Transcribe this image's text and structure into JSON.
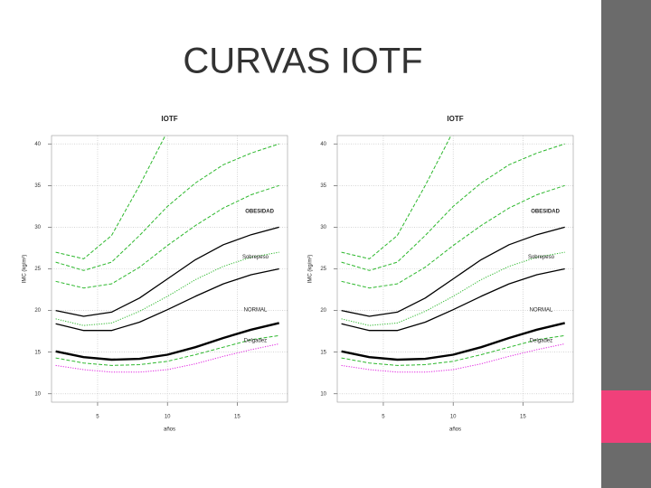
{
  "title": "CURVAS IOTF",
  "chart_data": [
    {
      "type": "line",
      "title": "IOTF",
      "xlabel": "años",
      "ylabel": "IMC (kg/m²)",
      "x": [
        2,
        4,
        6,
        8,
        10,
        12,
        14,
        16,
        18
      ],
      "xlim": [
        1.7,
        18.6
      ],
      "xticks": [
        5,
        10,
        15
      ],
      "ylim": [
        9,
        41
      ],
      "yticks": [
        10,
        15,
        20,
        25,
        30,
        35,
        40
      ],
      "grid": true,
      "annotations": [
        "OBESIDAD",
        "Sobrepeso",
        "NORMAL",
        "Delgadez"
      ],
      "series": [
        {
          "color": "#2db82d",
          "style": "dashed",
          "values": [
            27,
            26.2,
            29,
            35,
            41.5,
            null,
            null,
            null,
            null
          ]
        },
        {
          "color": "#2db82d",
          "style": "dashed",
          "values": [
            25.8,
            24.8,
            25.8,
            29,
            32.5,
            35.3,
            37.5,
            38.9,
            40
          ]
        },
        {
          "color": "#2db82d",
          "style": "dashed",
          "values": [
            23.5,
            22.7,
            23.2,
            25.2,
            27.8,
            30.2,
            32.3,
            33.9,
            35
          ]
        },
        {
          "color": "#000000",
          "style": "solid",
          "values": [
            20,
            19.3,
            19.8,
            21.5,
            23.8,
            26.1,
            27.9,
            29.1,
            30
          ]
        },
        {
          "color": "#2db82d",
          "style": "dotted",
          "values": [
            19,
            18.2,
            18.5,
            19.9,
            21.7,
            23.7,
            25.3,
            26.4,
            27
          ]
        },
        {
          "color": "#000000",
          "style": "solid",
          "values": [
            18.4,
            17.6,
            17.6,
            18.6,
            20.1,
            21.7,
            23.2,
            24.3,
            25
          ]
        },
        {
          "color": "#000000",
          "style": "thick",
          "values": [
            15.1,
            14.4,
            14.1,
            14.2,
            14.7,
            15.6,
            16.7,
            17.7,
            18.5
          ]
        },
        {
          "color": "#2db82d",
          "style": "dashed",
          "values": [
            14.3,
            13.7,
            13.4,
            13.5,
            13.9,
            14.7,
            15.6,
            16.5,
            17
          ]
        },
        {
          "color": "#e020e0",
          "style": "dotted",
          "values": [
            13.4,
            12.9,
            12.6,
            12.6,
            12.9,
            13.6,
            14.5,
            15.3,
            16
          ]
        }
      ]
    },
    {
      "type": "line",
      "title": "IOTF",
      "xlabel": "años",
      "ylabel": "IMC (kg/m²)",
      "x": [
        2,
        4,
        6,
        8,
        10,
        12,
        14,
        16,
        18
      ],
      "xlim": [
        1.7,
        18.6
      ],
      "xticks": [
        5,
        10,
        15
      ],
      "ylim": [
        9,
        41
      ],
      "yticks": [
        10,
        15,
        20,
        25,
        30,
        35,
        40
      ],
      "grid": true,
      "annotations": [
        "OBESIDAD",
        "Sobrepeso",
        "NORMAL",
        "Delgadez"
      ],
      "series": [
        {
          "color": "#2db82d",
          "style": "dashed",
          "values": [
            27,
            26.2,
            29,
            35,
            41.5,
            null,
            null,
            null,
            null
          ]
        },
        {
          "color": "#2db82d",
          "style": "dashed",
          "values": [
            25.8,
            24.8,
            25.8,
            29,
            32.5,
            35.3,
            37.5,
            38.9,
            40
          ]
        },
        {
          "color": "#2db82d",
          "style": "dashed",
          "values": [
            23.5,
            22.7,
            23.2,
            25.2,
            27.8,
            30.2,
            32.3,
            33.9,
            35
          ]
        },
        {
          "color": "#000000",
          "style": "solid",
          "values": [
            20,
            19.3,
            19.8,
            21.5,
            23.8,
            26.1,
            27.9,
            29.1,
            30
          ]
        },
        {
          "color": "#2db82d",
          "style": "dotted",
          "values": [
            19,
            18.2,
            18.5,
            19.9,
            21.7,
            23.7,
            25.3,
            26.4,
            27
          ]
        },
        {
          "color": "#000000",
          "style": "solid",
          "values": [
            18.4,
            17.6,
            17.6,
            18.6,
            20.1,
            21.7,
            23.2,
            24.3,
            25
          ]
        },
        {
          "color": "#000000",
          "style": "thick",
          "values": [
            15.1,
            14.4,
            14.1,
            14.2,
            14.7,
            15.6,
            16.7,
            17.7,
            18.5
          ]
        },
        {
          "color": "#2db82d",
          "style": "dashed",
          "values": [
            14.3,
            13.7,
            13.4,
            13.5,
            13.9,
            14.7,
            15.6,
            16.5,
            17
          ]
        },
        {
          "color": "#e020e0",
          "style": "dotted",
          "values": [
            13.4,
            12.9,
            12.6,
            12.6,
            12.9,
            13.6,
            14.5,
            15.3,
            16
          ]
        }
      ]
    }
  ]
}
